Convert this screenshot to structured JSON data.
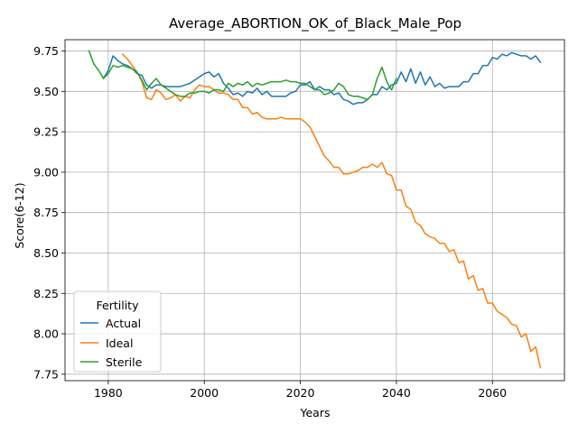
{
  "colors": {
    "actual": "#1f77b4",
    "ideal": "#ff7f0e",
    "sterile": "#2ca02c",
    "grid": "#b0b0b0"
  },
  "chart_data": {
    "type": "line",
    "title": "Average_ABORTION_OK_of_Black_Male_Pop",
    "xlabel": "Years",
    "ylabel": "Score(6-12)",
    "xlim": [
      1971,
      2075
    ],
    "ylim": [
      7.71,
      9.82
    ],
    "xticks": [
      1980,
      2000,
      2020,
      2040,
      2060
    ],
    "yticks": [
      7.75,
      8.0,
      8.25,
      8.5,
      8.75,
      9.0,
      9.25,
      9.5,
      9.75
    ],
    "ytick_labels": [
      "7.75",
      "8.00",
      "8.25",
      "8.50",
      "8.75",
      "9.00",
      "9.25",
      "9.50",
      "9.75"
    ],
    "grid": true,
    "legend": {
      "title": "Fertility",
      "placement": "lower-left"
    },
    "series": [
      {
        "name": "Actual",
        "color": "#1f77b4",
        "x": [
          1979,
          1980,
          1981,
          1982,
          1983,
          1984,
          1985,
          1986,
          1987,
          1988,
          1989,
          1990,
          1991,
          1992,
          1993,
          1994,
          1995,
          1996,
          1997,
          1998,
          1999,
          2000,
          2001,
          2002,
          2003,
          2004,
          2005,
          2006,
          2007,
          2008,
          2009,
          2010,
          2011,
          2012,
          2013,
          2014,
          2015,
          2016,
          2017,
          2018,
          2019,
          2020,
          2021,
          2022,
          2023,
          2024,
          2025,
          2026,
          2027,
          2028,
          2029,
          2030,
          2031,
          2032,
          2033,
          2034,
          2035,
          2036,
          2037,
          2038,
          2039,
          2040,
          2041,
          2042,
          2043,
          2044,
          2045,
          2046,
          2047,
          2048,
          2049,
          2050,
          2051,
          2052,
          2053,
          2054,
          2055,
          2056,
          2057,
          2058,
          2059,
          2060,
          2061,
          2062,
          2063,
          2064,
          2065,
          2066,
          2067,
          2068,
          2069,
          2070
        ],
        "values": [
          9.58,
          9.63,
          9.72,
          9.69,
          9.67,
          9.66,
          9.64,
          9.61,
          9.6,
          9.54,
          9.52,
          9.54,
          9.54,
          9.53,
          9.53,
          9.53,
          9.53,
          9.54,
          9.55,
          9.57,
          9.59,
          9.61,
          9.62,
          9.59,
          9.61,
          9.55,
          9.52,
          9.48,
          9.49,
          9.47,
          9.5,
          9.49,
          9.52,
          9.48,
          9.5,
          9.47,
          9.47,
          9.47,
          9.47,
          9.49,
          9.5,
          9.54,
          9.54,
          9.56,
          9.51,
          9.53,
          9.51,
          9.51,
          9.48,
          9.49,
          9.45,
          9.44,
          9.42,
          9.43,
          9.43,
          9.45,
          9.48,
          9.48,
          9.53,
          9.51,
          9.54,
          9.55,
          9.62,
          9.56,
          9.64,
          9.55,
          9.62,
          9.54,
          9.59,
          9.53,
          9.55,
          9.52,
          9.53,
          9.53,
          9.53,
          9.56,
          9.56,
          9.61,
          9.61,
          9.66,
          9.66,
          9.71,
          9.7,
          9.73,
          9.72,
          9.74,
          9.73,
          9.72,
          9.72,
          9.7,
          9.72,
          9.68
        ]
      },
      {
        "name": "Ideal",
        "color": "#ff7f0e",
        "x": [
          1983,
          1984,
          1985,
          1986,
          1987,
          1988,
          1989,
          1990,
          1991,
          1992,
          1993,
          1994,
          1995,
          1996,
          1997,
          1998,
          1999,
          2000,
          2001,
          2002,
          2003,
          2004,
          2005,
          2006,
          2007,
          2008,
          2009,
          2010,
          2011,
          2012,
          2013,
          2014,
          2015,
          2016,
          2017,
          2018,
          2019,
          2020,
          2021,
          2022,
          2023,
          2024,
          2025,
          2026,
          2027,
          2028,
          2029,
          2030,
          2031,
          2032,
          2033,
          2034,
          2035,
          2036,
          2037,
          2038,
          2039,
          2040,
          2041,
          2042,
          2043,
          2044,
          2045,
          2046,
          2047,
          2048,
          2049,
          2050,
          2051,
          2052,
          2053,
          2054,
          2055,
          2056,
          2057,
          2058,
          2059,
          2060,
          2061,
          2062,
          2063,
          2064,
          2065,
          2066,
          2067,
          2068,
          2069,
          2070
        ],
        "values": [
          9.73,
          9.7,
          9.66,
          9.62,
          9.56,
          9.46,
          9.45,
          9.51,
          9.49,
          9.45,
          9.46,
          9.48,
          9.44,
          9.47,
          9.46,
          9.51,
          9.54,
          9.53,
          9.53,
          9.51,
          9.49,
          9.49,
          9.48,
          9.45,
          9.45,
          9.4,
          9.4,
          9.36,
          9.37,
          9.34,
          9.33,
          9.33,
          9.33,
          9.34,
          9.33,
          9.33,
          9.33,
          9.33,
          9.31,
          9.28,
          9.22,
          9.16,
          9.1,
          9.07,
          9.03,
          9.03,
          8.99,
          8.99,
          9.0,
          9.01,
          9.03,
          9.03,
          9.05,
          9.03,
          9.06,
          8.99,
          8.98,
          8.89,
          8.89,
          8.79,
          8.77,
          8.69,
          8.67,
          8.62,
          8.6,
          8.59,
          8.56,
          8.56,
          8.51,
          8.52,
          8.44,
          8.45,
          8.34,
          8.36,
          8.27,
          8.28,
          8.19,
          8.19,
          8.14,
          8.12,
          8.1,
          8.06,
          8.05,
          7.98,
          8.0,
          7.89,
          7.92,
          7.79
        ]
      },
      {
        "name": "Sterile",
        "color": "#2ca02c",
        "x": [
          1976,
          1977,
          1978,
          1979,
          1980,
          1981,
          1982,
          1983,
          1984,
          1985,
          1986,
          1987,
          1988,
          1989,
          1990,
          1991,
          1992,
          1993,
          1994,
          1995,
          1996,
          1997,
          1998,
          1999,
          2000,
          2001,
          2002,
          2003,
          2004,
          2005,
          2006,
          2007,
          2008,
          2009,
          2010,
          2011,
          2012,
          2013,
          2014,
          2015,
          2016,
          2017,
          2018,
          2019,
          2020,
          2021,
          2022,
          2023,
          2024,
          2025,
          2026,
          2027,
          2028,
          2029,
          2030,
          2031,
          2032,
          2033,
          2034,
          2035,
          2036,
          2037,
          2038,
          2039,
          2040
        ],
        "values": [
          9.75,
          9.67,
          9.63,
          9.58,
          9.61,
          9.66,
          9.65,
          9.66,
          9.65,
          9.64,
          9.62,
          9.57,
          9.51,
          9.55,
          9.58,
          9.54,
          9.52,
          9.5,
          9.48,
          9.47,
          9.47,
          9.49,
          9.49,
          9.5,
          9.5,
          9.49,
          9.51,
          9.51,
          9.5,
          9.55,
          9.53,
          9.55,
          9.54,
          9.56,
          9.53,
          9.55,
          9.54,
          9.55,
          9.56,
          9.56,
          9.56,
          9.57,
          9.56,
          9.56,
          9.55,
          9.55,
          9.53,
          9.51,
          9.51,
          9.48,
          9.49,
          9.51,
          9.55,
          9.53,
          9.48,
          9.47,
          9.47,
          9.46,
          9.45,
          9.48,
          9.58,
          9.65,
          9.56,
          9.51,
          9.58
        ]
      }
    ]
  }
}
